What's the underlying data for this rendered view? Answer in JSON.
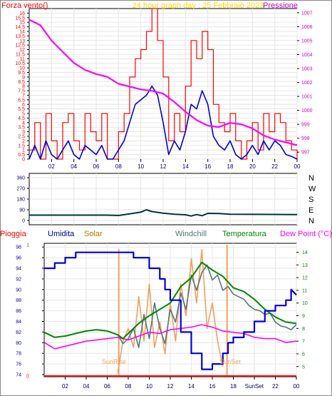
{
  "chart_data": [
    {
      "type": "line",
      "title": "24 hour graph day : 25 Febbraio 2023",
      "left_label": "Forza vento()",
      "right_label": "Pressione",
      "x_ticks": [
        "02",
        "04",
        "06",
        "08",
        "10",
        "12",
        "14",
        "16",
        "18",
        "20",
        "22",
        "00"
      ],
      "y_left_ticks": [
        "0",
        "0.5",
        "1",
        "1.5",
        "2",
        "2.5",
        "3",
        "3.5",
        "4",
        "4.5",
        "5",
        "5.5",
        "6",
        "6.5",
        "7",
        "7.5",
        "8",
        "8.5",
        "9",
        "9.5",
        "10",
        "10.5",
        "11",
        "11.5",
        "12",
        "12.5",
        "13",
        "13.5",
        "14",
        "14.5",
        "15",
        "15.5",
        "16"
      ],
      "y_right_ticks": [
        "997",
        "998",
        "999",
        "1000",
        "1001",
        "1002",
        "1003",
        "1004",
        "1005",
        "1006",
        "1007"
      ],
      "ylim_left": [
        0,
        16.5
      ],
      "ylim_right": [
        996.5,
        1007.3
      ],
      "grid": true,
      "colors": {
        "gust": "#ff0000",
        "wind": "#0000dd",
        "pressure": "#ff00ff",
        "title": "#ffd800",
        "left_label": "#ff0000",
        "right_label": "#cc00cc"
      },
      "series": [
        {
          "key": "gust",
          "axis": "left",
          "x": [
            0,
            0.5,
            1,
            1.5,
            2,
            2.5,
            3,
            3.5,
            4,
            4.5,
            5,
            5.5,
            6,
            6.5,
            7,
            7.5,
            8,
            8.5,
            9,
            9.5,
            10,
            10.5,
            11,
            11.5,
            12,
            12.5,
            13,
            13.5,
            14,
            14.5,
            15,
            15.5,
            16,
            16.5,
            17,
            17.5,
            18,
            18.5,
            19,
            19.5,
            20,
            20.5,
            21,
            21.5,
            22,
            22.5,
            23,
            23.5,
            24
          ],
          "values": [
            1,
            4,
            0,
            5,
            2,
            0,
            4,
            5,
            2,
            1,
            5,
            3,
            2,
            5,
            0,
            0,
            3,
            5,
            9,
            11,
            12,
            14,
            16.5,
            13,
            9,
            2,
            5,
            3,
            8,
            13,
            11,
            14,
            12,
            6,
            4,
            3,
            5,
            2,
            0,
            2,
            4,
            1,
            5,
            3,
            5,
            4,
            2,
            1,
            0
          ]
        },
        {
          "key": "wind",
          "axis": "left",
          "x": [
            0,
            0.5,
            1,
            1.5,
            2,
            2.5,
            3,
            3.5,
            4,
            4.5,
            5,
            5.5,
            6,
            6.5,
            7,
            7.5,
            8,
            8.5,
            9,
            9.5,
            10,
            10.5,
            11,
            11.5,
            12,
            12.5,
            13,
            13.5,
            14,
            14.5,
            15,
            15.5,
            16,
            16.5,
            17,
            17.5,
            18,
            18.5,
            19,
            19.5,
            20,
            20.5,
            21,
            21.5,
            22,
            22.5,
            23,
            23.5,
            24
          ],
          "values": [
            0,
            1.5,
            0,
            2,
            0.5,
            0,
            1,
            2,
            0.5,
            0,
            1.5,
            1,
            0.5,
            1.5,
            0,
            0,
            1,
            2,
            4,
            6,
            6.5,
            7,
            8,
            7,
            4,
            0.5,
            2,
            1,
            3,
            6,
            5.5,
            7.5,
            6,
            2.5,
            1.5,
            1,
            2,
            0.5,
            0,
            0.5,
            1.5,
            0.5,
            2,
            1,
            2,
            1.5,
            0.5,
            0.3,
            0
          ]
        },
        {
          "key": "pressure",
          "axis": "right",
          "x": [
            0,
            1,
            2,
            3,
            4,
            5,
            6,
            7,
            8,
            9,
            10,
            11,
            12,
            13,
            14,
            15,
            16,
            17,
            18,
            19,
            20,
            21,
            22,
            23,
            24
          ],
          "values": [
            1006.5,
            1006.1,
            1005,
            1004.2,
            1003.4,
            1002.9,
            1002.6,
            1002.4,
            1001.9,
            1001.7,
            1001.5,
            1001.4,
            1001.2,
            1000.6,
            999.9,
            999.3,
            998.9,
            998.8,
            999.1,
            999,
            998.7,
            998.2,
            997.9,
            997.7,
            997.5
          ]
        }
      ]
    },
    {
      "type": "line",
      "y_ticks": [
        "360",
        "270",
        "180",
        "90",
        "0"
      ],
      "right_labels": [
        "N",
        "W",
        "S",
        "E",
        "N"
      ],
      "ylim": [
        0,
        360
      ],
      "grid": true,
      "colors": {
        "direction": "#00353a"
      },
      "series": [
        {
          "key": "direction",
          "x": [
            0,
            7,
            8,
            9,
            10,
            10.5,
            11,
            12,
            13,
            14,
            14.5,
            15,
            15.5,
            16,
            17,
            18,
            24
          ],
          "values": [
            45,
            45,
            42,
            55,
            70,
            90,
            75,
            62,
            52,
            48,
            38,
            50,
            40,
            60,
            58,
            52,
            50
          ]
        }
      ]
    },
    {
      "type": "line",
      "labels": {
        "pioggia": "Pioggia",
        "umidita": "Umidita",
        "solar": "Solar",
        "windchill": "Windchill",
        "temperatura": "Temperatura",
        "dewpoint": "Dew Point (°C)"
      },
      "y_left_ticks": [
        "74",
        "76",
        "78",
        "80",
        "82",
        "84",
        "86",
        "88",
        "90",
        "92",
        "94",
        "96",
        "98"
      ],
      "y_right_ticks": [
        "5",
        "6",
        "7",
        "8",
        "9",
        "10",
        "11",
        "12",
        "13",
        "14"
      ],
      "y_rain_ticks": [
        "0",
        "1"
      ],
      "ylim_left": [
        73.6,
        98.7
      ],
      "ylim_right": [
        4.2,
        14.7
      ],
      "annotations": {
        "sunrise": "SunRise",
        "sunset": "SunSet",
        "x_sunset": "SunSet"
      },
      "grid": true,
      "colors": {
        "humidity": "#0000dd",
        "temperature": "#008800",
        "windchill": "#557777",
        "dewpoint": "#ff00ff",
        "solar": "#f0a060",
        "rain": "#ff0000",
        "pioggia": "#ff0000",
        "umidita": "#000099",
        "solar_label": "#aa7700"
      },
      "series": [
        {
          "key": "humidity",
          "axis": "left",
          "x": [
            0,
            1,
            1,
            2,
            2,
            3,
            3,
            8.5,
            8.5,
            10,
            10,
            11,
            11,
            11.5,
            11.5,
            12,
            12,
            13,
            13,
            14,
            14,
            15,
            15,
            16,
            16,
            17,
            17,
            17.5,
            17.5,
            18,
            18,
            19,
            19,
            20,
            20,
            21,
            21,
            22,
            22,
            23,
            23,
            23.5,
            23.5,
            24
          ],
          "values": [
            94,
            94,
            95,
            95,
            96,
            96,
            97,
            97,
            96,
            96,
            94,
            94,
            92,
            92,
            90,
            90,
            88,
            88,
            82,
            82,
            78,
            78,
            75,
            75,
            76,
            76,
            78,
            78,
            80,
            80,
            81,
            81,
            82,
            82,
            84,
            84,
            86,
            86,
            87,
            87,
            88,
            88,
            90,
            89
          ]
        },
        {
          "key": "temperature",
          "axis": "right",
          "x": [
            0,
            1,
            2,
            3,
            4,
            5,
            6,
            7,
            7.5,
            8,
            9,
            10,
            11,
            12,
            13,
            14,
            15,
            16,
            17,
            18,
            19,
            20,
            21,
            22,
            23,
            24
          ],
          "values": [
            7.7,
            7.3,
            7.4,
            7.6,
            7.8,
            7.9,
            7.8,
            7.5,
            7.2,
            7.6,
            8.4,
            9,
            9.5,
            10,
            11.3,
            12,
            13.2,
            12.6,
            12.1,
            11.2,
            10.9,
            10.3,
            9.5,
            8.9,
            8.5,
            8.4
          ]
        },
        {
          "key": "windchill",
          "axis": "right",
          "x": [
            7,
            7.5,
            8,
            8.5,
            9,
            9.5,
            10,
            10.5,
            11,
            11.5,
            12,
            12.5,
            13,
            13.5,
            14,
            14.5,
            15,
            15.5,
            16,
            16.5,
            17,
            17.5,
            18,
            18.5,
            19,
            19.5,
            20,
            20.5,
            21,
            21.5,
            22,
            22.5,
            23,
            23.5,
            24
          ],
          "values": [
            7.5,
            6.8,
            7.2,
            8,
            6.5,
            9.1,
            7.2,
            10,
            8,
            6.8,
            9.5,
            8.5,
            10.8,
            9.5,
            12.2,
            11,
            12.4,
            13,
            11.8,
            12.2,
            11,
            11.3,
            10.7,
            10.5,
            10.3,
            9.8,
            9.5,
            9.4,
            9.1,
            9.2,
            8.5,
            8.2,
            8.1,
            7.9,
            8.3
          ]
        },
        {
          "key": "dewpoint",
          "axis": "right",
          "x": [
            0,
            1,
            2,
            3,
            4,
            5,
            6,
            7,
            8,
            9,
            10,
            11,
            12,
            13,
            14,
            15,
            16,
            17,
            18,
            19,
            20,
            21,
            22,
            23,
            24
          ],
          "values": [
            6.9,
            6.4,
            6.6,
            6.8,
            7,
            7.1,
            7.2,
            7.3,
            7.1,
            7.4,
            7.7,
            7.6,
            7.9,
            8,
            8.1,
            8.3,
            8.1,
            7.8,
            7.7,
            7.6,
            7.3,
            7.2,
            7.2,
            6.9,
            7
          ]
        },
        {
          "key": "solar",
          "axis": "right",
          "x": [
            7,
            7.5,
            8,
            8.5,
            9,
            9.5,
            10,
            10.5,
            11,
            11.5,
            12,
            12.5,
            13,
            13.5,
            14,
            14.5,
            15,
            15.5,
            16,
            16.5,
            17
          ],
          "values": [
            4.5,
            7,
            8,
            6.5,
            10.5,
            7,
            11.5,
            6.5,
            8.5,
            6,
            10,
            7,
            11.5,
            9,
            13.5,
            10,
            14.2,
            8,
            10,
            7,
            5
          ]
        }
      ]
    }
  ]
}
